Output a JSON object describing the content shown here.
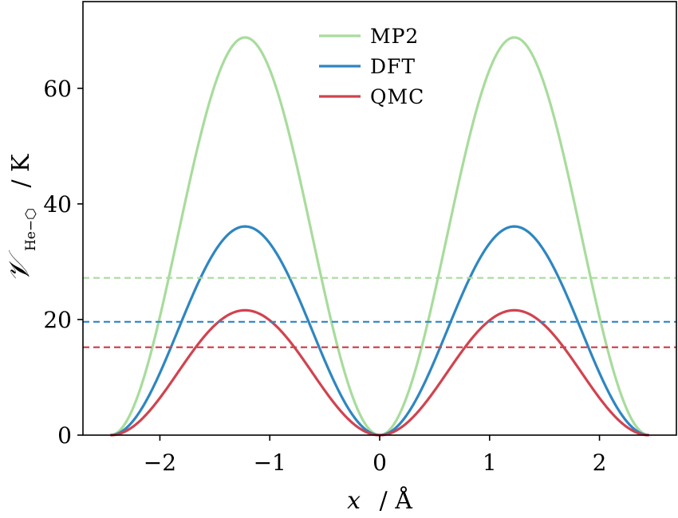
{
  "chart_data": {
    "type": "line",
    "xlabel": "x / Å",
    "xlabel_var": "x",
    "xlabel_unit": "/ Å",
    "ylabel_main": "𝒱",
    "ylabel_sub": "He−⬡",
    "ylabel_unit": "/ K",
    "xlim": [
      -2.7,
      2.7
    ],
    "ylim": [
      0,
      75
    ],
    "xticks": [
      -2,
      -1,
      0,
      1,
      2
    ],
    "xtick_labels": [
      "−2",
      "−1",
      "0",
      "1",
      "2"
    ],
    "yticks": [
      0,
      20,
      40,
      60
    ],
    "ytick_labels": [
      "0",
      "20",
      "40",
      "60"
    ],
    "grid": false,
    "legend_position": "top-center",
    "series": [
      {
        "name": "MP2",
        "color": "#a8dc9c",
        "peak": 68.8,
        "mean": 27.2
      },
      {
        "name": "DFT",
        "color": "#2e86c1",
        "peak": 36.1,
        "mean": 19.6
      },
      {
        "name": "QMC",
        "color": "#d1434f",
        "peak": 21.6,
        "mean": 15.2
      }
    ],
    "x_min": -2.45,
    "x_max": 2.45,
    "peak_x": [
      -1.23,
      1.23
    ]
  }
}
